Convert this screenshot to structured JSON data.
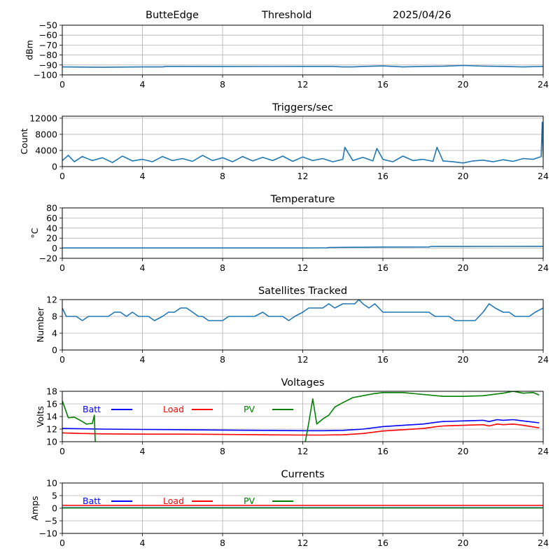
{
  "header": {
    "site": "ButteEdge",
    "mode": "Threshold",
    "date": "2025/04/26"
  },
  "chart_data": [
    {
      "type": "line",
      "title": "",
      "xlabel": "",
      "ylabel": "dBm",
      "xlim": [
        0,
        24
      ],
      "ylim": [
        -100,
        -50
      ],
      "xticks": [
        0,
        4,
        8,
        12,
        16,
        20,
        24
      ],
      "yticks": [
        -100,
        -90,
        -80,
        -70,
        -60,
        -50
      ],
      "grid": true,
      "series": [
        {
          "color": "#1f77b4",
          "x": [
            0,
            2,
            4,
            5,
            5.2,
            8,
            12,
            13.5,
            14,
            14.5,
            15,
            16,
            17,
            18,
            19,
            20,
            21,
            22,
            23,
            24
          ],
          "y": [
            -92,
            -92.3,
            -92,
            -92,
            -91.5,
            -91.6,
            -91.5,
            -91.5,
            -92,
            -92,
            -91.5,
            -91,
            -92,
            -91.5,
            -91.3,
            -90.5,
            -91.2,
            -91.5,
            -92,
            -91.5
          ]
        }
      ]
    },
    {
      "type": "line",
      "title": "Triggers/sec",
      "xlabel": "",
      "ylabel": "Count",
      "xlim": [
        0,
        24
      ],
      "ylim": [
        0,
        12500
      ],
      "xticks": [
        0,
        4,
        8,
        12,
        16,
        20,
        24
      ],
      "yticks": [
        0,
        4000,
        8000,
        12000
      ],
      "grid": true,
      "series": [
        {
          "color": "#1f77b4",
          "x": [
            0,
            0.3,
            0.6,
            1,
            1.5,
            2,
            2.5,
            3,
            3.5,
            4,
            4.5,
            5,
            5.5,
            6,
            6.5,
            7,
            7.5,
            8,
            8.5,
            9,
            9.5,
            10,
            10.5,
            11,
            11.5,
            12,
            12.5,
            13,
            13.5,
            14,
            14.1,
            14.5,
            15,
            15.5,
            15.7,
            16,
            16.5,
            17,
            17.5,
            18,
            18.5,
            18.7,
            19,
            19.5,
            20,
            20.5,
            21,
            21.5,
            22,
            22.5,
            23,
            23.5,
            23.9,
            23.95,
            24
          ],
          "y": [
            1500,
            2800,
            1200,
            2500,
            1500,
            2200,
            1000,
            2600,
            1400,
            1800,
            1200,
            2500,
            1500,
            2000,
            1300,
            2800,
            1500,
            2200,
            1200,
            2500,
            1400,
            2300,
            1500,
            2600,
            1300,
            2400,
            1500,
            2000,
            1200,
            1800,
            4800,
            1500,
            2300,
            1400,
            4500,
            1800,
            1200,
            2600,
            1500,
            1800,
            1300,
            4800,
            1400,
            1200,
            900,
            1400,
            1600,
            1200,
            1700,
            1300,
            2000,
            1800,
            2500,
            11000,
            2300
          ]
        }
      ]
    },
    {
      "type": "line",
      "title": "Temperature",
      "xlabel": "",
      "ylabel": "°C",
      "xlim": [
        0,
        24
      ],
      "ylim": [
        -20,
        80
      ],
      "xticks": [
        0,
        4,
        8,
        12,
        16,
        20,
        24
      ],
      "yticks": [
        -20,
        0,
        20,
        40,
        60,
        80
      ],
      "grid": true,
      "series": [
        {
          "color": "#1f77b4",
          "x": [
            0,
            4,
            8,
            12,
            13.2,
            13.3,
            14,
            15,
            16,
            18.3,
            18.4,
            20,
            22,
            24
          ],
          "y": [
            0.5,
            0.5,
            0.5,
            0.6,
            0.8,
            1.5,
            1.8,
            2,
            2.3,
            2.5,
            3.5,
            3.5,
            3.6,
            3.7
          ]
        }
      ]
    },
    {
      "type": "line",
      "title": "Satellites Tracked",
      "xlabel": "",
      "ylabel": "Number",
      "xlim": [
        0,
        24
      ],
      "ylim": [
        0,
        12
      ],
      "xticks": [
        0,
        4,
        8,
        12,
        16,
        20,
        24
      ],
      "yticks": [
        0,
        4,
        8,
        12
      ],
      "grid": true,
      "series": [
        {
          "color": "#1f77b4",
          "x": [
            0,
            0.2,
            0.4,
            0.7,
            1,
            1.3,
            1.6,
            2,
            2.3,
            2.6,
            2.9,
            3.2,
            3.5,
            3.8,
            4,
            4.3,
            4.6,
            5,
            5.3,
            5.6,
            5.9,
            6.2,
            6.5,
            6.8,
            7,
            7.3,
            7.6,
            8,
            8.3,
            8.6,
            9,
            9.3,
            9.6,
            10,
            10.3,
            10.6,
            11,
            11.3,
            11.6,
            12,
            12.3,
            12.6,
            13,
            13.3,
            13.6,
            14,
            14.3,
            14.6,
            14.8,
            15,
            15.3,
            15.6,
            16,
            16.3,
            16.6,
            17,
            17.3,
            17.6,
            18,
            18.3,
            18.6,
            19,
            19.3,
            19.6,
            20,
            20.3,
            20.6,
            21,
            21.3,
            21.6,
            22,
            22.3,
            22.6,
            23,
            23.3,
            23.6,
            24
          ],
          "y": [
            10,
            8,
            8,
            8,
            7,
            8,
            8,
            8,
            8,
            9,
            9,
            8,
            9,
            8,
            8,
            8,
            7,
            8,
            9,
            9,
            10,
            10,
            9,
            8,
            8,
            7,
            7,
            7,
            8,
            8,
            8,
            8,
            8,
            9,
            8,
            8,
            8,
            7,
            8,
            9,
            10,
            10,
            10,
            11,
            10,
            11,
            11,
            11,
            12,
            11,
            10,
            11,
            9,
            9,
            9,
            9,
            9,
            9,
            9,
            9,
            8,
            8,
            8,
            7,
            7,
            7,
            7,
            9,
            11,
            10,
            9,
            9,
            8,
            8,
            8,
            9,
            10
          ]
        }
      ]
    },
    {
      "type": "line",
      "title": "Voltages",
      "xlabel": "",
      "ylabel": "Volts",
      "xlim": [
        0,
        24
      ],
      "ylim": [
        10,
        18
      ],
      "xticks": [
        0,
        4,
        8,
        12,
        16,
        20,
        24
      ],
      "yticks": [
        10,
        12,
        14,
        16,
        18
      ],
      "grid": true,
      "legend": {
        "position": "top-left-inline"
      },
      "series": [
        {
          "name": "Batt",
          "color": "#0000ff",
          "x": [
            0,
            1,
            2,
            4,
            6,
            8,
            10,
            12,
            13,
            14,
            15,
            16,
            17,
            18,
            18.7,
            19,
            20,
            21,
            21.3,
            21.7,
            22,
            22.5,
            23,
            23.8
          ],
          "y": [
            12.1,
            12.05,
            12,
            11.95,
            11.9,
            11.85,
            11.8,
            11.75,
            11.75,
            11.8,
            12,
            12.4,
            12.6,
            12.8,
            13.1,
            13.2,
            13.3,
            13.4,
            13.2,
            13.5,
            13.4,
            13.5,
            13.3,
            13
          ]
        },
        {
          "name": "Load",
          "color": "#ff0000",
          "x": [
            0,
            1,
            2,
            4,
            6,
            8,
            10,
            12,
            13,
            14,
            15,
            16,
            17,
            18,
            18.7,
            19,
            20,
            21,
            21.3,
            21.7,
            22,
            22.5,
            23,
            23.8
          ],
          "y": [
            11.4,
            11.3,
            11.25,
            11.2,
            11.2,
            11.15,
            11.1,
            11.05,
            11.05,
            11.1,
            11.3,
            11.7,
            11.9,
            12.1,
            12.4,
            12.5,
            12.6,
            12.7,
            12.5,
            12.8,
            12.7,
            12.8,
            12.6,
            12.2
          ]
        },
        {
          "name": "PV",
          "color": "#008000",
          "x": [
            0,
            0.3,
            0.6,
            1,
            1.2,
            1.5,
            1.6,
            1.65,
            12.1,
            12.3,
            12.5,
            12.7,
            13,
            13.3,
            13.6,
            14,
            14.5,
            15,
            15.5,
            16,
            17,
            18,
            19,
            20,
            21,
            22,
            22.5,
            23,
            23.5,
            23.8
          ],
          "y": [
            16.5,
            13.8,
            13.9,
            13.2,
            12.8,
            12.9,
            14.2,
            9.5,
            9.5,
            13,
            16.8,
            12.8,
            13.6,
            14.2,
            15.5,
            16.2,
            17,
            17.3,
            17.6,
            17.8,
            17.8,
            17.5,
            17.2,
            17.2,
            17.3,
            17.7,
            18,
            17.7,
            17.8,
            17.4
          ]
        }
      ]
    },
    {
      "type": "line",
      "title": "Currents",
      "xlabel": "",
      "ylabel": "Amps",
      "xlim": [
        0,
        24
      ],
      "ylim": [
        -10,
        10
      ],
      "xticks": [
        0,
        4,
        8,
        12,
        16,
        20,
        24
      ],
      "yticks": [
        -10,
        -5,
        0,
        5,
        10
      ],
      "grid": true,
      "legend": {
        "position": "top-left-inline"
      },
      "series": [
        {
          "name": "Batt",
          "color": "#0000ff",
          "x": [
            0,
            24
          ],
          "y": [
            0.2,
            0.2
          ]
        },
        {
          "name": "Load",
          "color": "#ff0000",
          "x": [
            0,
            24
          ],
          "y": [
            1.1,
            1.1
          ]
        },
        {
          "name": "PV",
          "color": "#008000",
          "x": [
            0,
            24
          ],
          "y": [
            0.1,
            0.1
          ]
        }
      ]
    }
  ]
}
